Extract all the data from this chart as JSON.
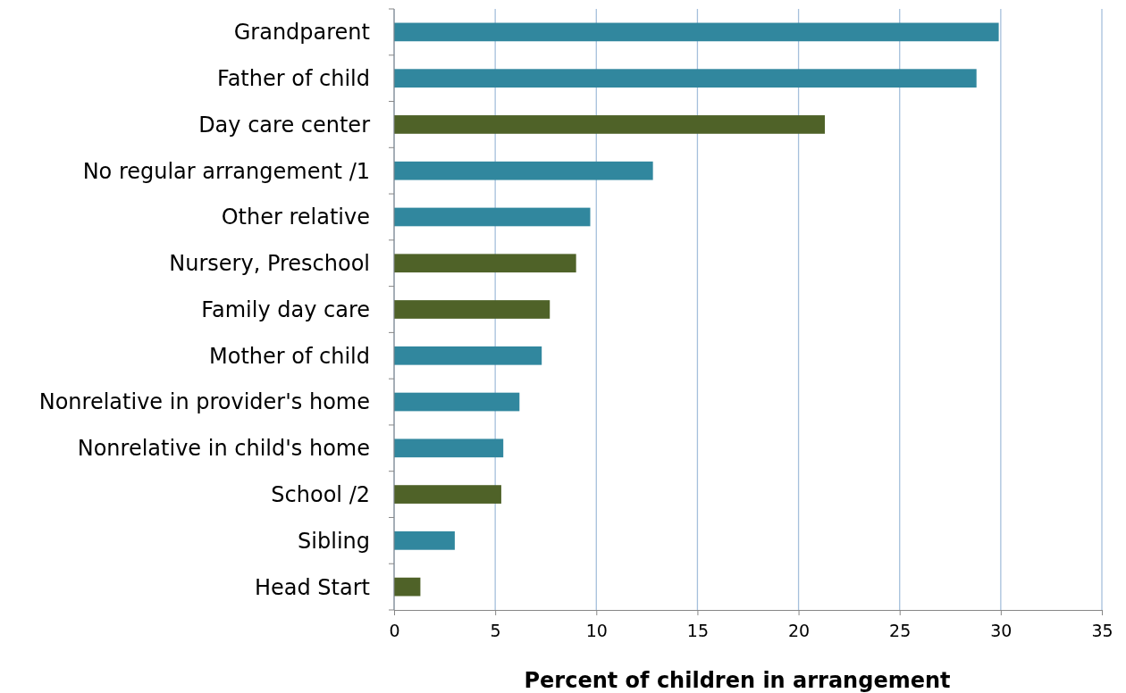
{
  "chart_data": {
    "type": "bar",
    "orientation": "horizontal",
    "xlabel": "Percent of children in arrangement",
    "categories": [
      "Grandparent",
      "Father of child",
      "Day care center",
      "No regular arrangement /1",
      "Other relative",
      "Nursery, Preschool",
      "Family day care",
      "Mother of child",
      "Nonrelative in provider's home",
      "Nonrelative in child's home",
      "School /2",
      "Sibling",
      "Head Start"
    ],
    "values": [
      29.9,
      28.8,
      21.3,
      12.8,
      9.7,
      9.0,
      7.7,
      7.3,
      6.2,
      5.4,
      5.3,
      3.0,
      1.3
    ],
    "colors": [
      "#31879e",
      "#31879e",
      "#4f6228",
      "#31879e",
      "#31879e",
      "#4f6228",
      "#4f6228",
      "#31879e",
      "#31879e",
      "#31879e",
      "#4f6228",
      "#31879e",
      "#4f6228"
    ],
    "xlim": [
      0,
      35
    ],
    "xticks": [
      0,
      5,
      10,
      15,
      20,
      25,
      30,
      35
    ],
    "grid": "x"
  }
}
